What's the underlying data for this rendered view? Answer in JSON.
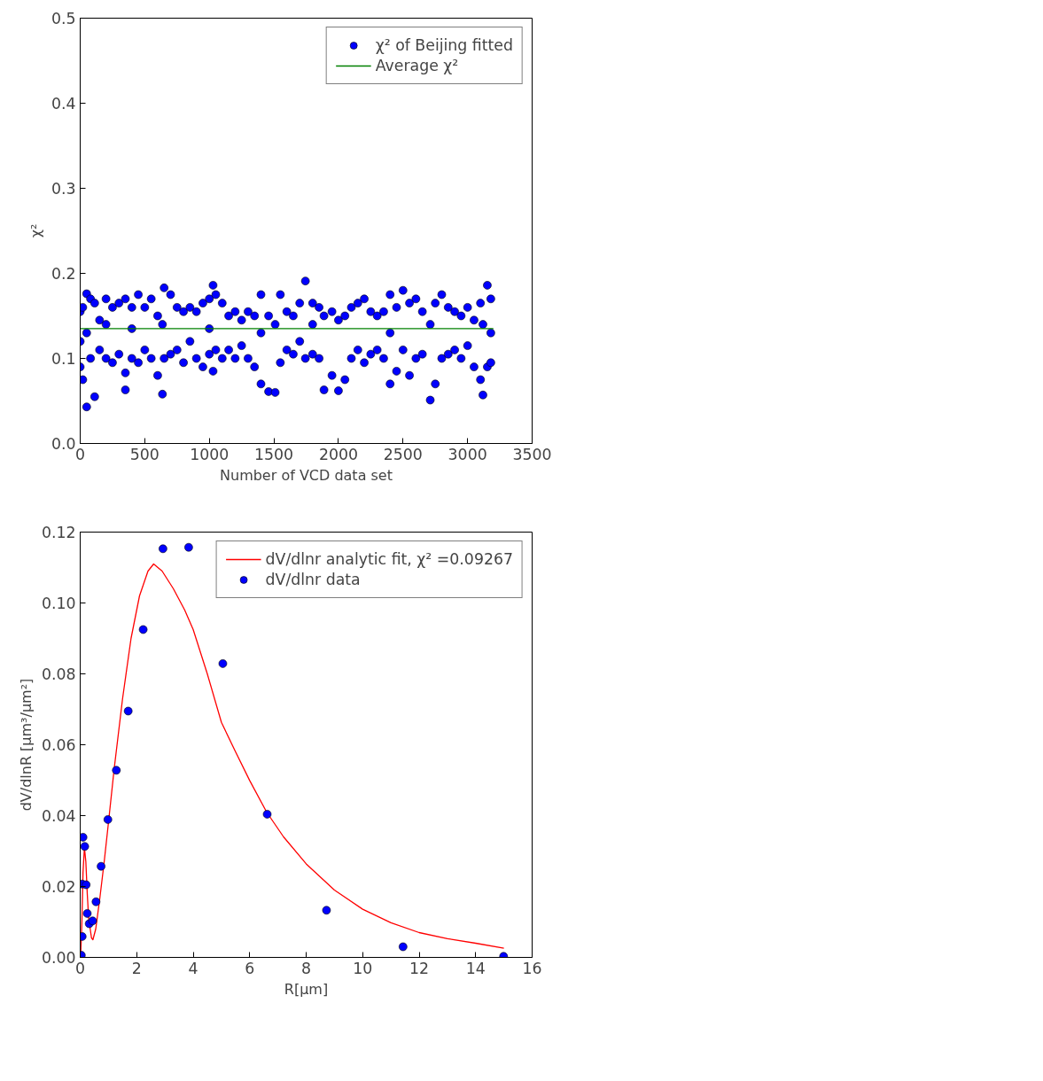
{
  "chart_data": [
    {
      "type": "scatter",
      "xlabel": "Number of VCD data set",
      "ylabel": "χ²",
      "xlim": [
        0,
        3500
      ],
      "ylim": [
        0,
        0.5
      ],
      "xticks": [
        0,
        500,
        1000,
        1500,
        2000,
        2500,
        3000,
        3500
      ],
      "yticks": [
        {
          "value": 0,
          "label": "0.0"
        },
        0.1,
        0.2,
        0.3,
        0.4,
        0.5
      ],
      "grid": false,
      "legend": "top right",
      "marker": "circle",
      "series": [
        {
          "name": "χ² of Beijing fitted",
          "color": "#0000ff",
          "x": [
            0,
            0,
            0,
            20,
            20,
            50,
            50,
            50,
            80,
            80,
            112,
            112,
            150,
            150,
            200,
            200,
            200,
            250,
            250,
            300,
            300,
            350,
            350,
            350,
            400,
            400,
            400,
            450,
            450,
            500,
            500,
            550,
            550,
            600,
            600,
            637,
            637,
            650,
            650,
            700,
            700,
            750,
            750,
            800,
            800,
            850,
            850,
            900,
            900,
            950,
            950,
            1000,
            1000,
            1000,
            1029,
            1029,
            1050,
            1050,
            1100,
            1100,
            1150,
            1150,
            1200,
            1200,
            1250,
            1250,
            1300,
            1300,
            1350,
            1350,
            1400,
            1400,
            1400,
            1459,
            1459,
            1510,
            1510,
            1550,
            1550,
            1600,
            1600,
            1650,
            1650,
            1700,
            1700,
            1744,
            1744,
            1800,
            1800,
            1800,
            1850,
            1850,
            1888,
            1888,
            1950,
            1950,
            2000,
            2000,
            2050,
            2050,
            2100,
            2100,
            2150,
            2150,
            2200,
            2200,
            2250,
            2250,
            2300,
            2300,
            2350,
            2350,
            2400,
            2400,
            2400,
            2450,
            2450,
            2500,
            2500,
            2550,
            2550,
            2600,
            2600,
            2650,
            2650,
            2711,
            2711,
            2750,
            2750,
            2800,
            2800,
            2850,
            2850,
            2900,
            2900,
            2950,
            2950,
            3000,
            3000,
            3050,
            3050,
            3100,
            3100,
            3119,
            3119,
            3153,
            3153,
            3180,
            3180,
            3180
          ],
          "values": [
            0.155,
            0.12,
            0.09,
            0.16,
            0.075,
            0.176,
            0.043,
            0.13,
            0.17,
            0.1,
            0.055,
            0.165,
            0.145,
            0.11,
            0.17,
            0.1,
            0.14,
            0.16,
            0.095,
            0.165,
            0.105,
            0.17,
            0.063,
            0.083,
            0.16,
            0.1,
            0.135,
            0.175,
            0.095,
            0.16,
            0.11,
            0.17,
            0.1,
            0.15,
            0.08,
            0.058,
            0.14,
            0.183,
            0.1,
            0.175,
            0.105,
            0.16,
            0.11,
            0.155,
            0.095,
            0.16,
            0.12,
            0.155,
            0.1,
            0.165,
            0.09,
            0.17,
            0.105,
            0.135,
            0.186,
            0.085,
            0.175,
            0.11,
            0.165,
            0.1,
            0.15,
            0.11,
            0.155,
            0.1,
            0.145,
            0.115,
            0.155,
            0.1,
            0.15,
            0.09,
            0.175,
            0.07,
            0.13,
            0.061,
            0.15,
            0.06,
            0.14,
            0.175,
            0.095,
            0.155,
            0.11,
            0.15,
            0.105,
            0.165,
            0.12,
            0.191,
            0.1,
            0.165,
            0.105,
            0.14,
            0.16,
            0.1,
            0.063,
            0.15,
            0.155,
            0.08,
            0.062,
            0.145,
            0.15,
            0.075,
            0.16,
            0.1,
            0.165,
            0.11,
            0.17,
            0.095,
            0.155,
            0.105,
            0.15,
            0.11,
            0.155,
            0.1,
            0.175,
            0.07,
            0.13,
            0.16,
            0.085,
            0.18,
            0.11,
            0.165,
            0.08,
            0.17,
            0.1,
            0.155,
            0.105,
            0.051,
            0.14,
            0.165,
            0.07,
            0.175,
            0.1,
            0.16,
            0.105,
            0.155,
            0.11,
            0.15,
            0.1,
            0.16,
            0.115,
            0.145,
            0.09,
            0.165,
            0.075,
            0.057,
            0.14,
            0.186,
            0.09,
            0.17,
            0.095,
            0.13
          ]
        },
        {
          "name": "Average χ²",
          "color": "#008000",
          "type": "line",
          "marker": "none",
          "x": [
            0,
            3200
          ],
          "values": [
            0.135,
            0.135
          ]
        }
      ]
    },
    {
      "type": "scatter",
      "xlabel": "R[μm]",
      "ylabel": "dV/dlnR [μm³/μm²]",
      "xlim": [
        0,
        16
      ],
      "ylim": [
        0,
        0.12
      ],
      "xticks": [
        0,
        2,
        4,
        6,
        8,
        10,
        12,
        14,
        16
      ],
      "yticks": [
        {
          "value": 0,
          "label": "0.00"
        },
        {
          "value": 0.02,
          "label": "0.02"
        },
        {
          "value": 0.04,
          "label": "0.04"
        },
        {
          "value": 0.06,
          "label": "0.06"
        },
        {
          "value": 0.08,
          "label": "0.08"
        },
        {
          "value": 0.1,
          "label": "0.10"
        },
        {
          "value": 0.12,
          "label": "0.12"
        }
      ],
      "grid": false,
      "legend": "top right",
      "marker": "circle",
      "series": [
        {
          "name": "dV/dlnr analytic fit, χ² =0.09267",
          "color": "#ff0000",
          "type": "line",
          "marker": "none",
          "x": [
            0.0,
            0.02,
            0.06,
            0.1,
            0.15,
            0.2,
            0.25,
            0.3,
            0.4,
            0.45,
            0.55,
            0.7,
            0.85,
            1.0,
            1.2,
            1.5,
            1.8,
            2.1,
            2.4,
            2.6,
            2.9,
            3.3,
            3.7,
            4.0,
            4.5,
            5.0,
            5.5,
            6.0,
            6.6,
            7.2,
            8.0,
            9.0,
            10.0,
            11.0,
            12.0,
            13.0,
            14.0,
            15.0
          ],
          "values": [
            0.0,
            0.001,
            0.01,
            0.024,
            0.031,
            0.027,
            0.018,
            0.011,
            0.0055,
            0.005,
            0.008,
            0.017,
            0.027,
            0.038,
            0.053,
            0.073,
            0.09,
            0.102,
            0.109,
            0.111,
            0.109,
            0.104,
            0.098,
            0.0925,
            0.08,
            0.0663,
            0.058,
            0.0499,
            0.041,
            0.034,
            0.0264,
            0.019,
            0.0136,
            0.0098,
            0.007,
            0.0053,
            0.004,
            0.0026
          ]
        },
        {
          "name": "dV/dlnr data",
          "color": "#0000ff",
          "x": [
            0.04,
            0.07,
            0.07,
            0.1,
            0.16,
            0.21,
            0.25,
            0.32,
            0.44,
            0.56,
            0.74,
            0.98,
            1.28,
            1.7,
            2.23,
            2.93,
            3.84,
            5.05,
            6.62,
            8.72,
            11.43,
            14.99
          ],
          "values": [
            0.0006,
            0.0059,
            0.0207,
            0.0339,
            0.0313,
            0.0205,
            0.0124,
            0.0095,
            0.0103,
            0.0157,
            0.0257,
            0.0389,
            0.0528,
            0.0695,
            0.0925,
            0.1153,
            0.1157,
            0.0829,
            0.0404,
            0.0133,
            0.003,
            0.0003
          ]
        }
      ]
    }
  ]
}
